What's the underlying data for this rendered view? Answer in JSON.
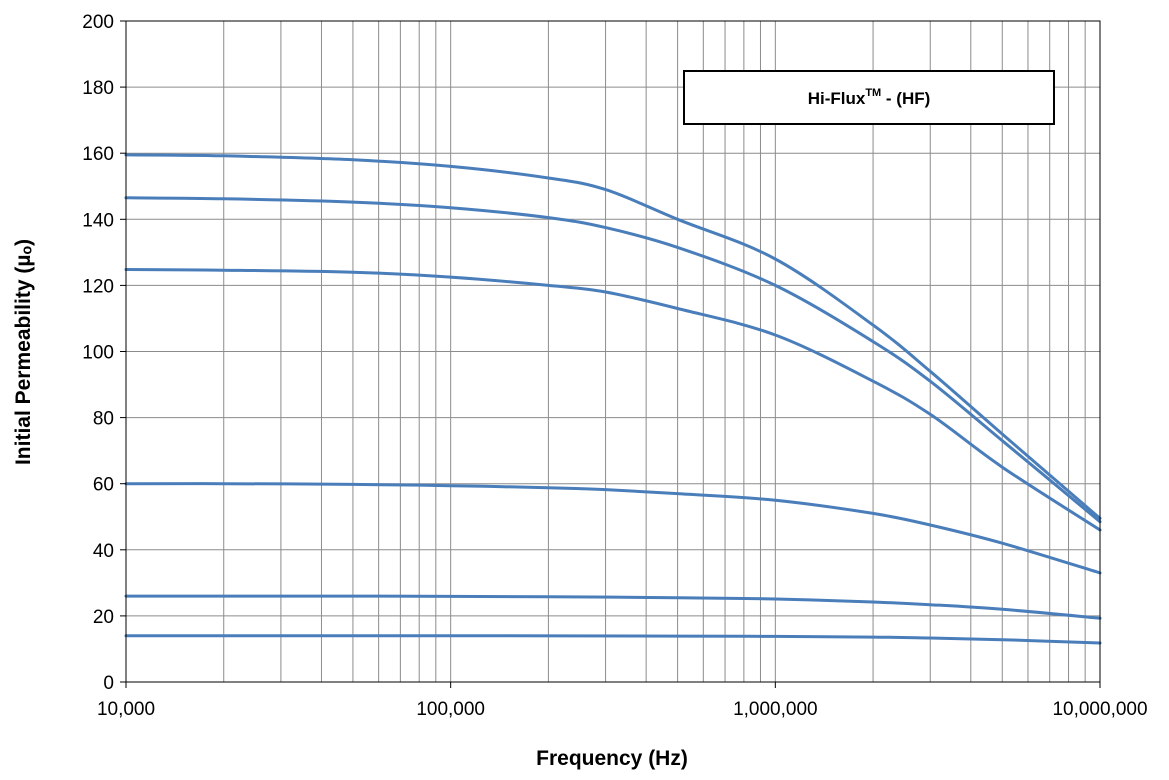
{
  "chart_data": {
    "type": "line",
    "xlabel": "Frequency (Hz)",
    "ylabel": "Initial Permeability (µₒ)",
    "legend_box": {
      "text": "Hi-Flux",
      "superscript": "TM",
      "suffix": " - (HF)",
      "placement": "top-right"
    },
    "x_scale": "log",
    "xlim": [
      10000,
      10000000
    ],
    "ylim": [
      0,
      200
    ],
    "grid": true,
    "x_ticks": [
      {
        "value": 10000,
        "label": "10,000"
      },
      {
        "value": 100000,
        "label": "100,000"
      },
      {
        "value": 1000000,
        "label": "1,000,000"
      },
      {
        "value": 10000000,
        "label": "10,000,000"
      }
    ],
    "y_ticks": [
      {
        "value": 0,
        "label": "0"
      },
      {
        "value": 20,
        "label": "20"
      },
      {
        "value": 40,
        "label": "40"
      },
      {
        "value": 60,
        "label": "60"
      },
      {
        "value": 80,
        "label": "80"
      },
      {
        "value": 100,
        "label": "100"
      },
      {
        "value": 120,
        "label": "120"
      },
      {
        "value": 140,
        "label": "140"
      },
      {
        "value": 160,
        "label": "160"
      },
      {
        "value": 180,
        "label": "180"
      },
      {
        "value": 200,
        "label": "200"
      }
    ],
    "line_color": "#4a7ebb",
    "series": [
      {
        "x": [
          10000,
          20000,
          50000,
          100000,
          200000,
          300000,
          500000,
          1000000,
          2000000,
          3000000,
          5000000,
          10000000
        ],
        "y": [
          159.5,
          159.2,
          158,
          156,
          152.5,
          149,
          140,
          128,
          108,
          94,
          75,
          49.5
        ]
      },
      {
        "x": [
          10000,
          20000,
          50000,
          100000,
          200000,
          300000,
          500000,
          1000000,
          2000000,
          3000000,
          5000000,
          10000000
        ],
        "y": [
          146.5,
          146.2,
          145.2,
          143.5,
          140.5,
          137.5,
          131.5,
          120,
          103,
          91,
          73,
          48.5
        ]
      },
      {
        "x": [
          10000,
          20000,
          50000,
          100000,
          200000,
          300000,
          500000,
          1000000,
          2000000,
          3000000,
          5000000,
          10000000
        ],
        "y": [
          124.8,
          124.6,
          124,
          122.5,
          120,
          118,
          113,
          105,
          91,
          81,
          65,
          46
        ]
      },
      {
        "x": [
          10000,
          20000,
          50000,
          100000,
          200000,
          300000,
          500000,
          1000000,
          2000000,
          3000000,
          5000000,
          10000000
        ],
        "y": [
          60,
          60,
          59.8,
          59.4,
          58.8,
          58.2,
          57,
          55,
          51,
          47.5,
          42,
          33
        ]
      },
      {
        "x": [
          10000,
          20000,
          50000,
          100000,
          200000,
          500000,
          1000000,
          2000000,
          3000000,
          5000000,
          10000000
        ],
        "y": [
          26,
          26,
          26,
          25.9,
          25.8,
          25.5,
          25.1,
          24.2,
          23.4,
          22,
          19.3
        ]
      },
      {
        "x": [
          10000,
          50000,
          100000,
          500000,
          1000000,
          2000000,
          3000000,
          5000000,
          10000000
        ],
        "y": [
          14,
          14,
          14,
          13.9,
          13.8,
          13.6,
          13.3,
          12.8,
          11.8
        ]
      }
    ]
  }
}
